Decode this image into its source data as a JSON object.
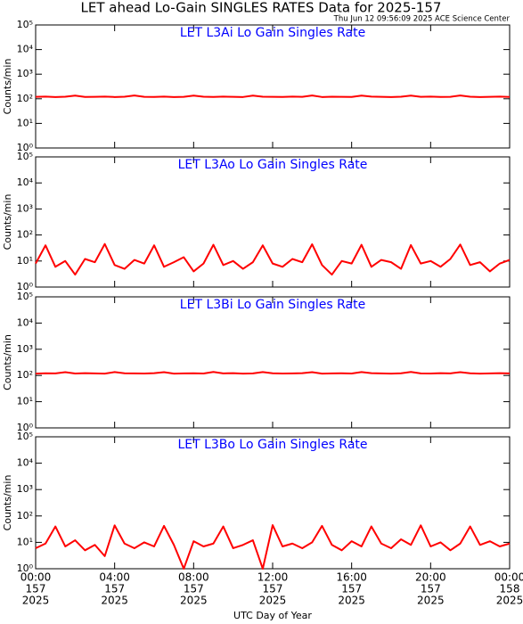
{
  "title": "LET ahead Lo-Gain SINGLES RATES Data for 2025-157",
  "timestamp": "Thu Jun 12 09:56:09 2025 ACE Science Center",
  "chart_data": [
    {
      "type": "line",
      "title": "LET L3Ai Lo Gain Singles Rate",
      "y_label": "Counts/min",
      "log_y": true,
      "ylim": [
        1,
        100000
      ],
      "yticks": [
        {
          "value": 1,
          "label": "10⁰"
        },
        {
          "value": 10,
          "label": "10¹"
        },
        {
          "value": 100,
          "label": "10²"
        },
        {
          "value": 1000,
          "label": "10³"
        },
        {
          "value": 10000,
          "label": "10⁴"
        },
        {
          "value": 100000,
          "label": "10⁵"
        }
      ],
      "xlim": [
        0,
        24
      ],
      "xticks": [
        0,
        4,
        8,
        12,
        16,
        20,
        24
      ],
      "x": [
        0,
        0.5,
        1,
        1.5,
        2,
        2.5,
        3,
        3.5,
        4,
        4.5,
        5,
        5.5,
        6,
        6.5,
        7,
        7.5,
        8,
        8.5,
        9,
        9.5,
        10,
        10.5,
        11,
        11.5,
        12,
        12.5,
        13,
        13.5,
        14,
        14.5,
        15,
        15.5,
        16,
        16.5,
        17,
        17.5,
        18,
        18.5,
        19,
        19.5,
        20,
        20.5,
        21,
        21.5,
        22,
        22.5,
        23,
        23.5,
        24
      ],
      "series": [
        {
          "color": "#ff0000",
          "values": [
            120,
            122,
            118,
            121,
            135,
            119,
            120,
            123,
            118,
            121,
            136,
            120,
            119,
            122,
            118,
            120,
            134,
            121,
            119,
            122,
            120,
            118,
            135,
            121,
            120,
            119,
            122,
            120,
            136,
            118,
            121,
            120,
            119,
            135,
            122,
            120,
            118,
            121,
            134,
            120,
            122,
            119,
            120,
            136,
            121,
            118,
            120,
            122,
            119
          ]
        }
      ]
    },
    {
      "type": "line",
      "title": "LET L3Ao Lo Gain Singles Rate",
      "y_label": "Counts/min",
      "log_y": true,
      "ylim": [
        1,
        100000
      ],
      "yticks": [
        {
          "value": 1,
          "label": "10⁰"
        },
        {
          "value": 10,
          "label": "10¹"
        },
        {
          "value": 100,
          "label": "10²"
        },
        {
          "value": 1000,
          "label": "10³"
        },
        {
          "value": 10000,
          "label": "10⁴"
        },
        {
          "value": 100000,
          "label": "10⁵"
        }
      ],
      "xlim": [
        0,
        24
      ],
      "xticks": [
        0,
        4,
        8,
        12,
        16,
        20,
        24
      ],
      "x": [
        0,
        0.5,
        1,
        1.5,
        2,
        2.5,
        3,
        3.5,
        4,
        4.5,
        5,
        5.5,
        6,
        6.5,
        7,
        7.5,
        8,
        8.5,
        9,
        9.5,
        10,
        10.5,
        11,
        11.5,
        12,
        12.5,
        13,
        13.5,
        14,
        14.5,
        15,
        15.5,
        16,
        16.5,
        17,
        17.5,
        18,
        18.5,
        19,
        19.5,
        20,
        20.5,
        21,
        21.5,
        22,
        22.5,
        23,
        23.5,
        24
      ],
      "series": [
        {
          "color": "#ff0000",
          "values": [
            8,
            40,
            6,
            10,
            3,
            12,
            9,
            45,
            7,
            5,
            11,
            8,
            40,
            6,
            9,
            14,
            4,
            8,
            42,
            7,
            10,
            5,
            9,
            40,
            8,
            6,
            12,
            9,
            44,
            7,
            3,
            10,
            8,
            42,
            6,
            11,
            9,
            5,
            41,
            8,
            10,
            6,
            12,
            43,
            7,
            9,
            4,
            8,
            11
          ]
        }
      ]
    },
    {
      "type": "line",
      "title": "LET L3Bi Lo Gain Singles Rate",
      "y_label": "Counts/min",
      "log_y": true,
      "ylim": [
        1,
        100000
      ],
      "yticks": [
        {
          "value": 1,
          "label": "10⁰"
        },
        {
          "value": 10,
          "label": "10¹"
        },
        {
          "value": 100,
          "label": "10²"
        },
        {
          "value": 1000,
          "label": "10³"
        },
        {
          "value": 10000,
          "label": "10⁴"
        },
        {
          "value": 100000,
          "label": "10⁵"
        }
      ],
      "xlim": [
        0,
        24
      ],
      "xticks": [
        0,
        4,
        8,
        12,
        16,
        20,
        24
      ],
      "x": [
        0,
        0.5,
        1,
        1.5,
        2,
        2.5,
        3,
        3.5,
        4,
        4.5,
        5,
        5.5,
        6,
        6.5,
        7,
        7.5,
        8,
        8.5,
        9,
        9.5,
        10,
        10.5,
        11,
        11.5,
        12,
        12.5,
        13,
        13.5,
        14,
        14.5,
        15,
        15.5,
        16,
        16.5,
        17,
        17.5,
        18,
        18.5,
        19,
        19.5,
        20,
        20.5,
        21,
        21.5,
        22,
        22.5,
        23,
        23.5,
        24
      ],
      "series": [
        {
          "color": "#ff0000",
          "values": [
            118,
            121,
            120,
            134,
            119,
            122,
            120,
            118,
            135,
            121,
            120,
            119,
            122,
            134,
            118,
            120,
            121,
            119,
            136,
            120,
            122,
            118,
            120,
            135,
            121,
            119,
            120,
            122,
            134,
            118,
            120,
            121,
            119,
            135,
            122,
            120,
            118,
            121,
            136,
            120,
            119,
            122,
            120,
            134,
            121,
            118,
            120,
            122,
            120
          ]
        }
      ]
    },
    {
      "type": "line",
      "title": "LET L3Bo Lo Gain Singles Rate",
      "y_label": "Counts/min",
      "log_y": true,
      "ylim": [
        1,
        100000
      ],
      "yticks": [
        {
          "value": 1,
          "label": "10⁰"
        },
        {
          "value": 10,
          "label": "10¹"
        },
        {
          "value": 100,
          "label": "10²"
        },
        {
          "value": 1000,
          "label": "10³"
        },
        {
          "value": 10000,
          "label": "10⁴"
        },
        {
          "value": 100000,
          "label": "10⁵"
        }
      ],
      "xlim": [
        0,
        24
      ],
      "xticks": [
        {
          "value": 0,
          "label": [
            "00:00",
            "157",
            "2025"
          ]
        },
        {
          "value": 4,
          "label": [
            "04:00",
            "157",
            "2025"
          ]
        },
        {
          "value": 8,
          "label": [
            "08:00",
            "157",
            "2025"
          ]
        },
        {
          "value": 12,
          "label": [
            "12:00",
            "157",
            "2025"
          ]
        },
        {
          "value": 16,
          "label": [
            "16:00",
            "157",
            "2025"
          ]
        },
        {
          "value": 20,
          "label": [
            "20:00",
            "157",
            "2025"
          ]
        },
        {
          "value": 24,
          "label": [
            "00:00",
            "158",
            "2025"
          ]
        }
      ],
      "x_label": "UTC Day of Year",
      "x": [
        0,
        0.5,
        1,
        1.5,
        2,
        2.5,
        3,
        3.5,
        4,
        4.5,
        5,
        5.5,
        6,
        6.5,
        7,
        7.5,
        8,
        8.5,
        9,
        9.5,
        10,
        10.5,
        11,
        11.5,
        12,
        12.5,
        13,
        13.5,
        14,
        14.5,
        15,
        15.5,
        16,
        16.5,
        17,
        17.5,
        18,
        18.5,
        19,
        19.5,
        20,
        20.5,
        21,
        21.5,
        22,
        22.5,
        23,
        23.5,
        24
      ],
      "series": [
        {
          "color": "#ff0000",
          "values": [
            6,
            9,
            40,
            7,
            12,
            5,
            8,
            3,
            44,
            9,
            6,
            10,
            7,
            42,
            8,
            1,
            11,
            7,
            9,
            40,
            6,
            8,
            12,
            1,
            45,
            7,
            9,
            6,
            10,
            42,
            8,
            5,
            11,
            7,
            40,
            9,
            6,
            13,
            8,
            44,
            7,
            10,
            5,
            9,
            40,
            8,
            11,
            7,
            9
          ]
        }
      ]
    }
  ]
}
